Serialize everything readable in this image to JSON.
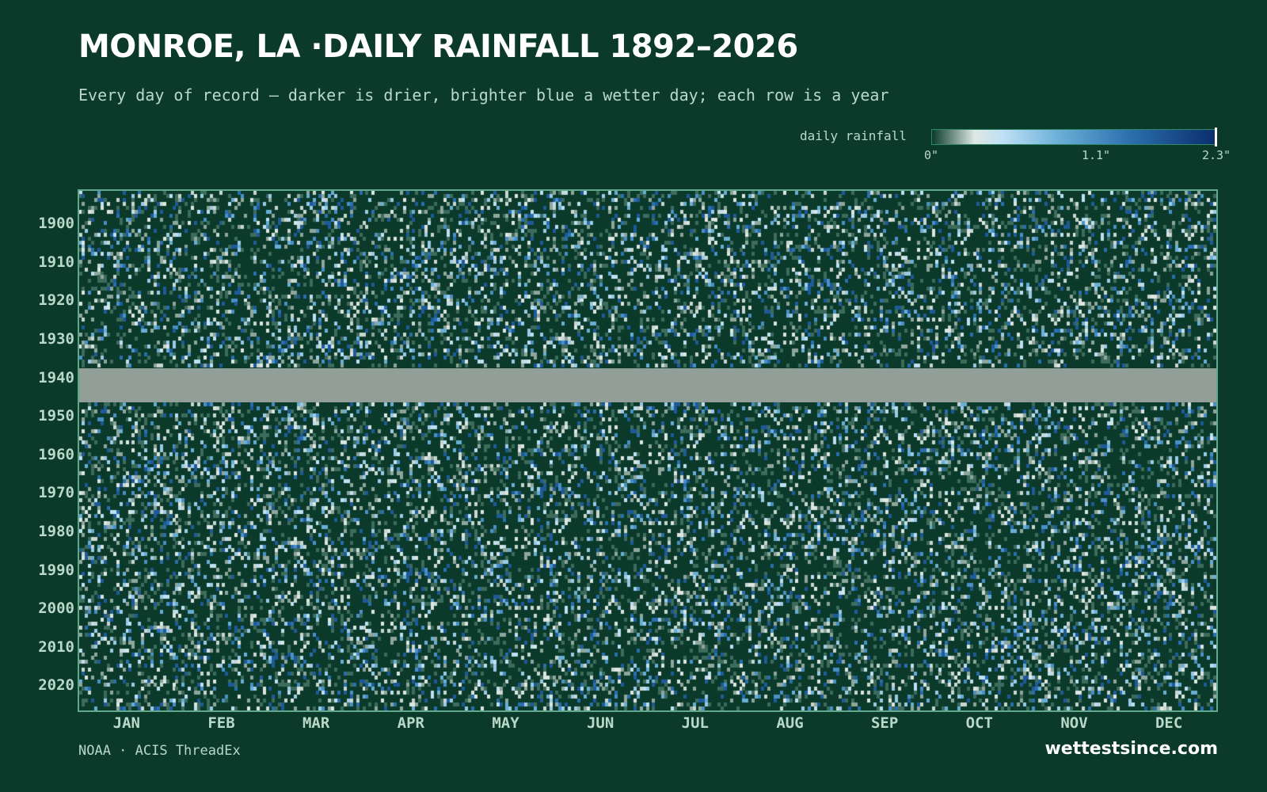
{
  "title": "MONROE, LA ·DAILY RAINFALL 1892–2026",
  "subtitle": "Every day of record — darker is drier, brighter blue a wetter day; each row is a year",
  "legend": {
    "label": "daily rainfall",
    "ticks": [
      "0\"",
      "1.1\"",
      "2.3\""
    ]
  },
  "source": "NOAA · ACIS ThreadEx",
  "brand": "wettestsince.com",
  "colors": {
    "background": "#0b3a2b",
    "missing": "#929f98",
    "scale": [
      "#0b3a2b",
      "#dfe8e4",
      "#bfe0f4",
      "#6aaed6",
      "#2a6fae",
      "#0b2d6b"
    ]
  },
  "chart_data": {
    "type": "heatmap",
    "title": "MONROE, LA ·DAILY RAINFALL 1892–2026",
    "x_axis": {
      "label": "",
      "tick_labels": [
        "JAN",
        "FEB",
        "MAR",
        "APR",
        "MAY",
        "JUN",
        "JUL",
        "AUG",
        "SEP",
        "OCT",
        "NOV",
        "DEC"
      ]
    },
    "y_axis": {
      "label": "",
      "range": [
        1892,
        2026
      ],
      "tick_labels": [
        "1900",
        "1910",
        "1920",
        "1930",
        "1940",
        "1950",
        "1960",
        "1970",
        "1980",
        "1990",
        "2000",
        "2010",
        "2020"
      ]
    },
    "value_range": [
      0,
      2.3
    ],
    "value_unit": "in",
    "missing_data_years": [
      1938,
      1939,
      1940,
      1941,
      1942,
      1943,
      1944,
      1945,
      1946
    ],
    "legend": "top-right"
  }
}
